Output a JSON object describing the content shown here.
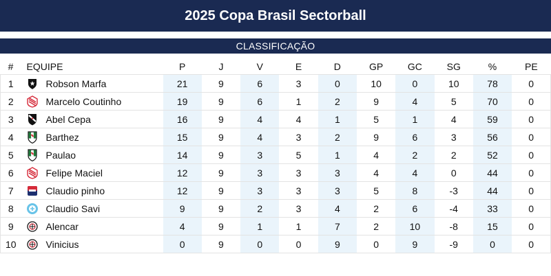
{
  "title": "2025 Copa Brasil Sectorball",
  "section": "CLASSIFICAÇÃO",
  "columns": [
    "#",
    "EQUIPE",
    "P",
    "J",
    "V",
    "E",
    "D",
    "GP",
    "GC",
    "SG",
    "%",
    "PE"
  ],
  "rows": [
    {
      "pos": "1",
      "team": "Robson Marfa",
      "crest": "botafogo-crest-icon",
      "p": "21",
      "j": "9",
      "v": "6",
      "e": "3",
      "d": "0",
      "gp": "10",
      "gc": "0",
      "sg": "10",
      "pct": "78",
      "pe": "0"
    },
    {
      "pos": "2",
      "team": "Marcelo Coutinho",
      "crest": "bangu-crest-icon",
      "p": "19",
      "j": "9",
      "v": "6",
      "e": "1",
      "d": "2",
      "gp": "9",
      "gc": "4",
      "sg": "5",
      "pct": "70",
      "pe": "0"
    },
    {
      "pos": "3",
      "team": "Abel Cepa",
      "crest": "vasco-crest-icon",
      "p": "16",
      "j": "9",
      "v": "4",
      "e": "4",
      "d": "1",
      "gp": "5",
      "gc": "1",
      "sg": "4",
      "pct": "59",
      "pe": "0"
    },
    {
      "pos": "4",
      "team": "Barthez",
      "crest": "figueirense-crest-icon",
      "p": "15",
      "j": "9",
      "v": "4",
      "e": "3",
      "d": "2",
      "gp": "9",
      "gc": "6",
      "sg": "3",
      "pct": "56",
      "pe": "0"
    },
    {
      "pos": "5",
      "team": "Paulao",
      "crest": "figueirense-crest-icon",
      "p": "14",
      "j": "9",
      "v": "3",
      "e": "5",
      "d": "1",
      "gp": "4",
      "gc": "2",
      "sg": "2",
      "pct": "52",
      "pe": "0"
    },
    {
      "pos": "6",
      "team": "Felipe Maciel",
      "crest": "bangu-crest-icon",
      "p": "12",
      "j": "9",
      "v": "3",
      "e": "3",
      "d": "3",
      "gp": "4",
      "gc": "4",
      "sg": "0",
      "pct": "44",
      "pe": "0"
    },
    {
      "pos": "7",
      "team": "Claudio pinho",
      "crest": "red-blue-crest-icon",
      "p": "12",
      "j": "9",
      "v": "3",
      "e": "3",
      "d": "3",
      "gp": "5",
      "gc": "8",
      "sg": "-3",
      "pct": "44",
      "pe": "0"
    },
    {
      "pos": "8",
      "team": "Claudio Savi",
      "crest": "light-blue-crest-icon",
      "p": "9",
      "j": "9",
      "v": "2",
      "e": "3",
      "d": "4",
      "gp": "2",
      "gc": "6",
      "sg": "-4",
      "pct": "33",
      "pe": "0"
    },
    {
      "pos": "9",
      "team": "Alencar",
      "crest": "corinthians-crest-icon",
      "p": "4",
      "j": "9",
      "v": "1",
      "e": "1",
      "d": "7",
      "gp": "2",
      "gc": "10",
      "sg": "-8",
      "pct": "15",
      "pe": "0"
    },
    {
      "pos": "10",
      "team": "Vinicius",
      "crest": "corinthians-crest-icon",
      "p": "0",
      "j": "9",
      "v": "0",
      "e": "0",
      "d": "9",
      "gp": "0",
      "gc": "9",
      "sg": "-9",
      "pct": "0",
      "pe": "0"
    }
  ],
  "colors": {
    "header_bg": "#1a2a52",
    "shade": "#eaf4fb",
    "border": "#e3e3e3"
  }
}
